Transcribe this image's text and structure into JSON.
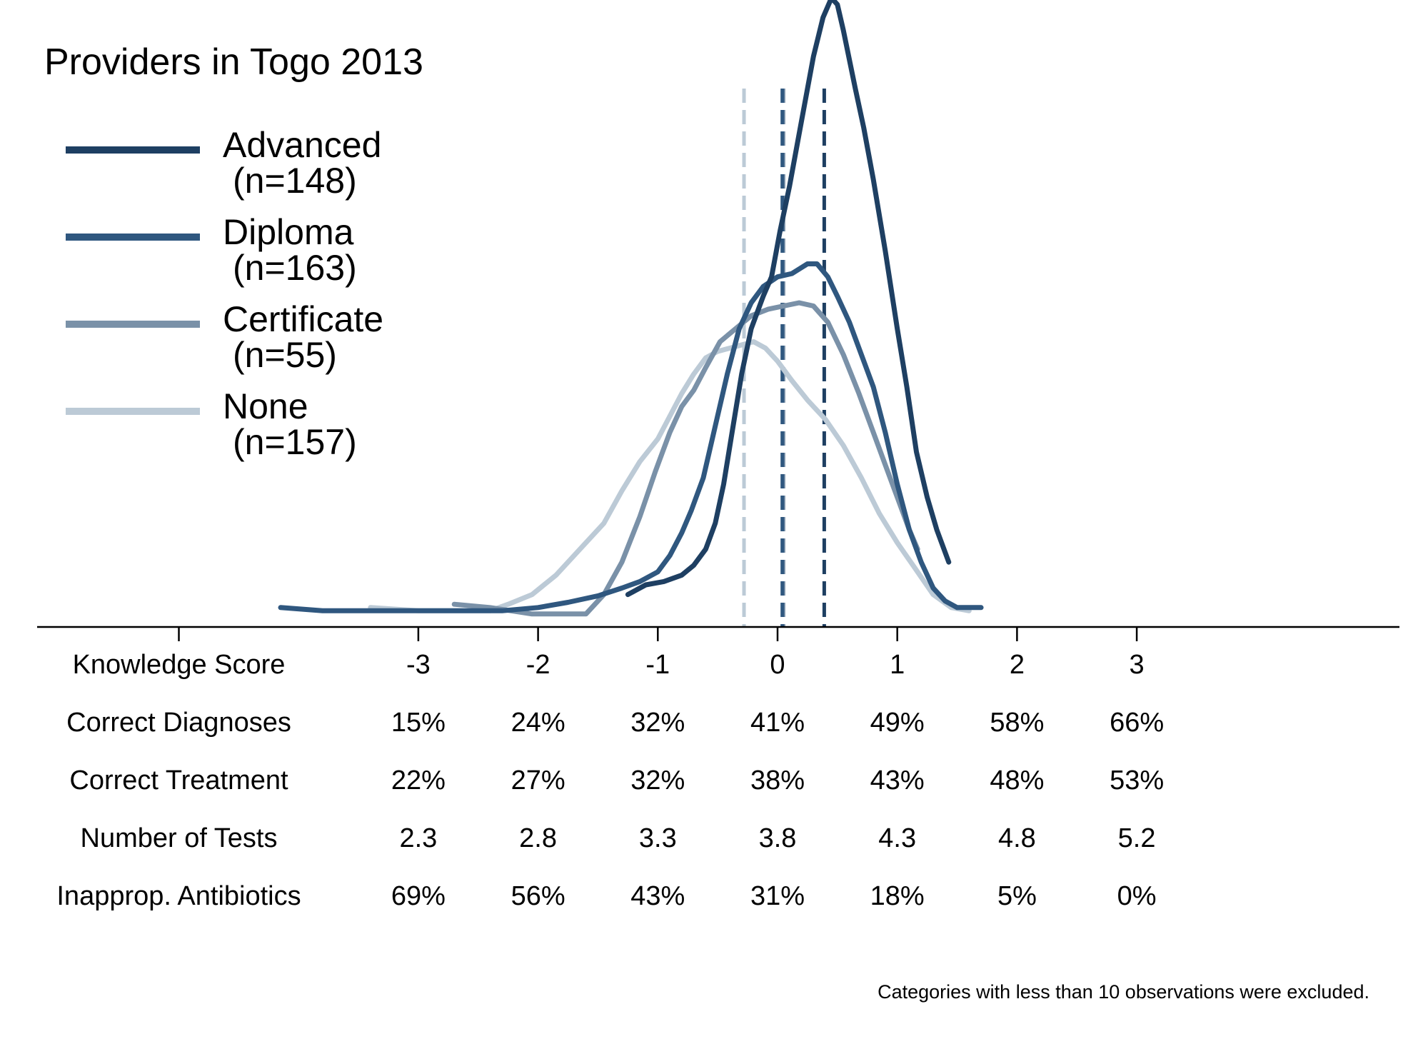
{
  "chart_data": {
    "type": "line",
    "title": "Providers in Togo 2013",
    "note": "Categories with less than 10 observations were excluded.",
    "xlim": [
      -5,
      5.2
    ],
    "ylim": [
      0,
      0.95
    ],
    "x_ticks": [
      -5,
      -3,
      -2,
      -1,
      0,
      1,
      2,
      3
    ],
    "x_tick_labels": [
      "",
      "-3",
      "-2",
      "-1",
      "0",
      "1",
      "2",
      "3"
    ],
    "series": [
      {
        "name": "Advanced",
        "n_label": "(n=148)",
        "color": "#1e3f62",
        "mean": 0.39,
        "points": [
          [
            -1.25,
            0.05
          ],
          [
            -1.1,
            0.065
          ],
          [
            -0.95,
            0.07
          ],
          [
            -0.8,
            0.08
          ],
          [
            -0.7,
            0.095
          ],
          [
            -0.6,
            0.12
          ],
          [
            -0.52,
            0.16
          ],
          [
            -0.45,
            0.22
          ],
          [
            -0.38,
            0.3
          ],
          [
            -0.3,
            0.39
          ],
          [
            -0.22,
            0.46
          ],
          [
            -0.12,
            0.51
          ],
          [
            -0.05,
            0.54
          ],
          [
            0.02,
            0.61
          ],
          [
            0.1,
            0.68
          ],
          [
            0.2,
            0.78
          ],
          [
            0.3,
            0.88
          ],
          [
            0.38,
            0.94
          ],
          [
            0.45,
            0.97
          ],
          [
            0.5,
            0.96
          ],
          [
            0.55,
            0.92
          ],
          [
            0.65,
            0.83
          ],
          [
            0.72,
            0.77
          ],
          [
            0.8,
            0.69
          ],
          [
            0.9,
            0.58
          ],
          [
            1.0,
            0.46
          ],
          [
            1.08,
            0.37
          ],
          [
            1.16,
            0.27
          ],
          [
            1.25,
            0.2
          ],
          [
            1.33,
            0.15
          ],
          [
            1.43,
            0.1
          ]
        ]
      },
      {
        "name": "Diploma",
        "n_label": "(n=163)",
        "color": "#2f577f",
        "mean": 0.04,
        "points": [
          [
            -4.15,
            0.03
          ],
          [
            -3.8,
            0.025
          ],
          [
            -3.2,
            0.025
          ],
          [
            -2.7,
            0.025
          ],
          [
            -2.3,
            0.025
          ],
          [
            -2.0,
            0.03
          ],
          [
            -1.75,
            0.038
          ],
          [
            -1.5,
            0.048
          ],
          [
            -1.3,
            0.06
          ],
          [
            -1.15,
            0.07
          ],
          [
            -1.0,
            0.085
          ],
          [
            -0.9,
            0.11
          ],
          [
            -0.8,
            0.145
          ],
          [
            -0.72,
            0.18
          ],
          [
            -0.62,
            0.23
          ],
          [
            -0.52,
            0.31
          ],
          [
            -0.42,
            0.39
          ],
          [
            -0.32,
            0.46
          ],
          [
            -0.22,
            0.5
          ],
          [
            -0.12,
            0.525
          ],
          [
            0.0,
            0.54
          ],
          [
            0.12,
            0.545
          ],
          [
            0.25,
            0.56
          ],
          [
            0.33,
            0.56
          ],
          [
            0.42,
            0.54
          ],
          [
            0.5,
            0.51
          ],
          [
            0.6,
            0.47
          ],
          [
            0.7,
            0.42
          ],
          [
            0.8,
            0.37
          ],
          [
            0.9,
            0.3
          ],
          [
            1.0,
            0.22
          ],
          [
            1.1,
            0.15
          ],
          [
            1.2,
            0.1
          ],
          [
            1.3,
            0.06
          ],
          [
            1.4,
            0.04
          ],
          [
            1.5,
            0.03
          ],
          [
            1.7,
            0.03
          ]
        ]
      },
      {
        "name": "Certificate",
        "n_label": "(n=55)",
        "color": "#7a91a8",
        "mean": 0.05,
        "points": [
          [
            -2.7,
            0.035
          ],
          [
            -2.4,
            0.03
          ],
          [
            -2.05,
            0.02
          ],
          [
            -1.8,
            0.02
          ],
          [
            -1.6,
            0.02
          ],
          [
            -1.45,
            0.05
          ],
          [
            -1.3,
            0.1
          ],
          [
            -1.15,
            0.17
          ],
          [
            -1.02,
            0.24
          ],
          [
            -0.9,
            0.3
          ],
          [
            -0.8,
            0.34
          ],
          [
            -0.7,
            0.365
          ],
          [
            -0.6,
            0.4
          ],
          [
            -0.48,
            0.44
          ],
          [
            -0.35,
            0.46
          ],
          [
            -0.22,
            0.48
          ],
          [
            -0.08,
            0.49
          ],
          [
            0.05,
            0.495
          ],
          [
            0.18,
            0.5
          ],
          [
            0.3,
            0.495
          ],
          [
            0.42,
            0.47
          ],
          [
            0.55,
            0.42
          ],
          [
            0.68,
            0.36
          ],
          [
            0.8,
            0.3
          ],
          [
            0.9,
            0.25
          ],
          [
            1.0,
            0.2
          ],
          [
            1.1,
            0.15
          ],
          [
            1.17,
            0.12
          ]
        ]
      },
      {
        "name": "None",
        "n_label": "(n=157)",
        "color": "#bccad6",
        "mean": -0.28,
        "points": [
          [
            -3.4,
            0.03
          ],
          [
            -3.0,
            0.025
          ],
          [
            -2.7,
            0.025
          ],
          [
            -2.4,
            0.025
          ],
          [
            -2.25,
            0.035
          ],
          [
            -2.05,
            0.05
          ],
          [
            -1.85,
            0.08
          ],
          [
            -1.65,
            0.12
          ],
          [
            -1.45,
            0.16
          ],
          [
            -1.3,
            0.21
          ],
          [
            -1.15,
            0.255
          ],
          [
            -1.0,
            0.29
          ],
          [
            -0.9,
            0.325
          ],
          [
            -0.8,
            0.36
          ],
          [
            -0.7,
            0.39
          ],
          [
            -0.6,
            0.415
          ],
          [
            -0.5,
            0.425
          ],
          [
            -0.4,
            0.43
          ],
          [
            -0.3,
            0.435
          ],
          [
            -0.2,
            0.44
          ],
          [
            -0.1,
            0.43
          ],
          [
            0.0,
            0.41
          ],
          [
            0.12,
            0.38
          ],
          [
            0.25,
            0.35
          ],
          [
            0.4,
            0.32
          ],
          [
            0.55,
            0.28
          ],
          [
            0.7,
            0.23
          ],
          [
            0.85,
            0.175
          ],
          [
            1.0,
            0.13
          ],
          [
            1.15,
            0.09
          ],
          [
            1.3,
            0.05
          ],
          [
            1.45,
            0.03
          ],
          [
            1.6,
            0.025
          ]
        ]
      }
    ],
    "table": {
      "rows": [
        {
          "label": "Knowledge Score",
          "values": [
            "-3",
            "-2",
            "-1",
            "0",
            "1",
            "2",
            "3"
          ]
        },
        {
          "label": "Correct Diagnoses",
          "values": [
            "15%",
            "24%",
            "32%",
            "41%",
            "49%",
            "58%",
            "66%"
          ]
        },
        {
          "label": "Correct Treatment",
          "values": [
            "22%",
            "27%",
            "32%",
            "38%",
            "43%",
            "48%",
            "53%"
          ]
        },
        {
          "label": "Number of Tests",
          "values": [
            "2.3",
            "2.8",
            "3.3",
            "3.8",
            "4.3",
            "4.8",
            "5.2"
          ]
        },
        {
          "label": "Inapprop. Antibiotics",
          "values": [
            "69%",
            "56%",
            "43%",
            "31%",
            "18%",
            "5%",
            "0%"
          ]
        }
      ],
      "columns_x": [
        -3,
        -2,
        -1,
        0,
        1,
        2,
        3
      ]
    }
  }
}
